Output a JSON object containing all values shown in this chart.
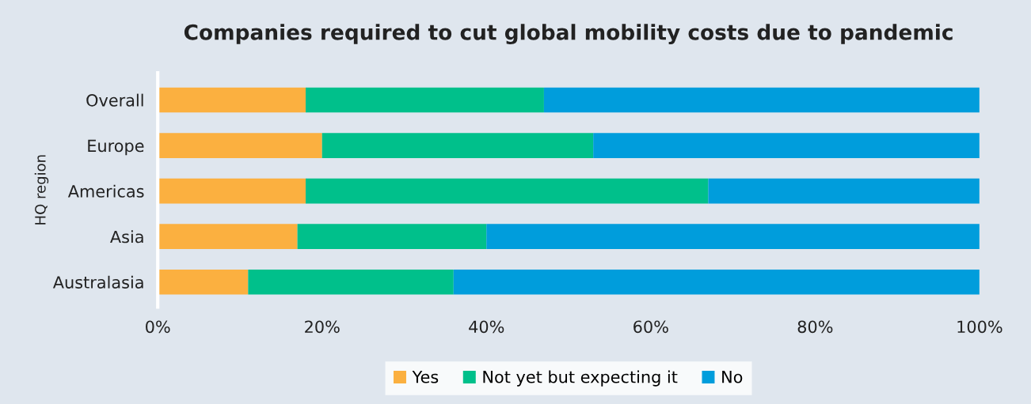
{
  "chart_data": {
    "type": "bar",
    "orientation": "horizontal",
    "stacked": true,
    "title": "Companies required to cut global mobility costs due to pandemic",
    "ylabel": "HQ region",
    "categories": [
      "Overall",
      "Europe",
      "Americas",
      "Asia",
      "Australasia"
    ],
    "series": [
      {
        "name": "Yes",
        "color": "#fbb040",
        "values": [
          18,
          20,
          18,
          17,
          11
        ]
      },
      {
        "name": "Not yet but expecting it",
        "color": "#00c08b",
        "values": [
          29,
          33,
          49,
          23,
          25
        ]
      },
      {
        "name": "No",
        "color": "#009ddc",
        "values": [
          53,
          47,
          33,
          60,
          64
        ]
      }
    ],
    "xlim": [
      0,
      100
    ],
    "xticks": [
      {
        "value": 0,
        "label": "0%"
      },
      {
        "value": 20,
        "label": "20%"
      },
      {
        "value": 40,
        "label": "40%"
      },
      {
        "value": 60,
        "label": "60%"
      },
      {
        "value": 80,
        "label": "80%"
      },
      {
        "value": 100,
        "label": "100%"
      }
    ],
    "legend": "bottom",
    "grid": false
  }
}
